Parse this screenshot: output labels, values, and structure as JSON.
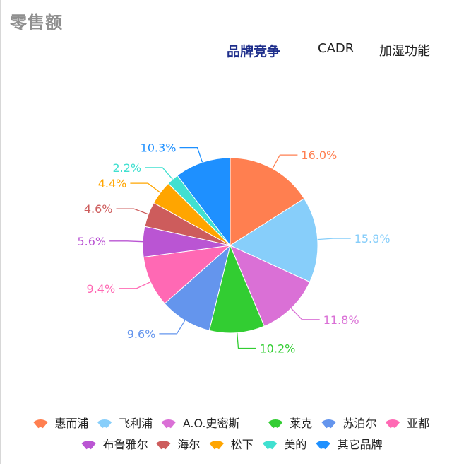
{
  "page_title": "零售额",
  "tabs": [
    {
      "label": "品牌竞争",
      "active": true
    },
    {
      "label": "CADR",
      "active": false
    },
    {
      "label": "加湿功能",
      "active": false
    }
  ],
  "chart_data": {
    "type": "pie",
    "title": "",
    "legend_position": "bottom",
    "categories": [
      "惠而浦",
      "飞利浦",
      "A.O.史密斯",
      "莱克",
      "苏泊尔",
      "亚都",
      "布鲁雅尔",
      "海尔",
      "松下",
      "美的",
      "其它品牌"
    ],
    "values": [
      16.0,
      15.8,
      11.8,
      10.2,
      9.6,
      9.4,
      5.6,
      4.6,
      4.4,
      2.2,
      10.3
    ],
    "data_labels": [
      "16.0%",
      "15.8%",
      "11.8%",
      "10.2%",
      "9.6%",
      "9.4%",
      "5.6%",
      "4.6%",
      "4.4%",
      "2.2%",
      "10.3%"
    ],
    "colors": [
      "#FF7F50",
      "#87CEFA",
      "#DA70D6",
      "#32CD32",
      "#6495ED",
      "#FF69B4",
      "#BA55D3",
      "#CD5C5C",
      "#FFA500",
      "#40E0D0",
      "#1E90FF"
    ]
  }
}
